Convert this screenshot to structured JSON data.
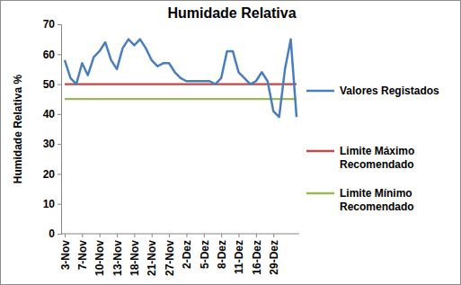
{
  "chart_data": {
    "type": "line",
    "title": "Humidade Relativa",
    "y_label": "Humidade Relativa %",
    "categories": [
      "3-Nov",
      null,
      null,
      "7-Nov",
      null,
      null,
      "10-Nov",
      null,
      null,
      "13-Nov",
      null,
      null,
      "18-Nov",
      null,
      null,
      "21-Nov",
      null,
      null,
      "27-Nov",
      null,
      null,
      "2-Dez",
      null,
      null,
      "5-Dez",
      null,
      null,
      "8-Dez",
      null,
      null,
      "11-Dez",
      null,
      null,
      "16-Dez",
      null,
      null,
      "29-Dez",
      null,
      null,
      null,
      null
    ],
    "series": [
      {
        "name": "Valores Registados",
        "color": "#4a7ebb",
        "values": [
          58,
          52,
          50,
          57,
          53,
          59,
          61,
          64,
          58,
          55,
          62,
          65,
          63,
          65,
          62,
          58,
          56,
          57,
          57,
          54,
          52,
          51,
          51,
          51,
          51,
          51,
          50,
          52,
          61,
          61,
          54,
          52,
          50,
          51,
          54,
          51,
          41,
          39,
          55,
          65,
          39
        ]
      },
      {
        "name": "Limite Máximo Recomendado",
        "color": "#be4b48",
        "values": [
          50,
          50,
          50,
          50,
          50,
          50,
          50,
          50,
          50,
          50,
          50,
          50,
          50,
          50,
          50,
          50,
          50,
          50,
          50,
          50,
          50,
          50,
          50,
          50,
          50,
          50,
          50,
          50,
          50,
          50,
          50,
          50,
          50,
          50,
          50,
          50,
          50,
          50,
          50,
          50,
          50
        ]
      },
      {
        "name": "Limite Mínimo Recomendado",
        "color": "#98b954",
        "values": [
          45,
          45,
          45,
          45,
          45,
          45,
          45,
          45,
          45,
          45,
          45,
          45,
          45,
          45,
          45,
          45,
          45,
          45,
          45,
          45,
          45,
          45,
          45,
          45,
          45,
          45,
          45,
          45,
          45,
          45,
          45,
          45,
          45,
          45,
          45,
          45,
          45,
          45,
          45,
          45,
          45
        ]
      }
    ],
    "ylim": [
      0,
      70
    ],
    "yticks": [
      0,
      10,
      20,
      30,
      40,
      50,
      60,
      70
    ],
    "grid": false,
    "legend": "right"
  }
}
